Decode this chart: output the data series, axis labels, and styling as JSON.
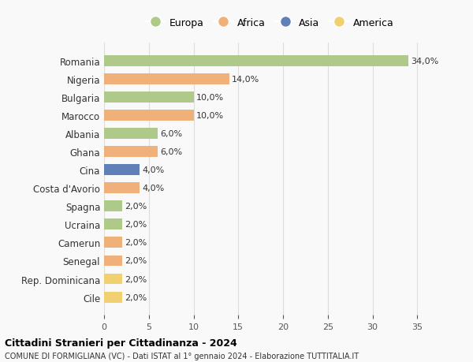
{
  "countries": [
    "Romania",
    "Nigeria",
    "Bulgaria",
    "Marocco",
    "Albania",
    "Ghana",
    "Cina",
    "Costa d'Avorio",
    "Spagna",
    "Ucraina",
    "Camerun",
    "Senegal",
    "Rep. Dominicana",
    "Cile"
  ],
  "values": [
    34.0,
    14.0,
    10.0,
    10.0,
    6.0,
    6.0,
    4.0,
    4.0,
    2.0,
    2.0,
    2.0,
    2.0,
    2.0,
    2.0
  ],
  "continents": [
    "Europa",
    "Africa",
    "Europa",
    "Africa",
    "Europa",
    "Africa",
    "Asia",
    "Africa",
    "Europa",
    "Europa",
    "Africa",
    "Africa",
    "America",
    "America"
  ],
  "colors": {
    "Europa": "#aec98a",
    "Africa": "#f0b07a",
    "Asia": "#6080b8",
    "America": "#f0d070"
  },
  "legend_order": [
    "Europa",
    "Africa",
    "Asia",
    "America"
  ],
  "title": "Cittadini Stranieri per Cittadinanza - 2024",
  "subtitle": "COMUNE DI FORMIGLIANA (VC) - Dati ISTAT al 1° gennaio 2024 - Elaborazione TUTTITALIA.IT",
  "xlim": [
    0,
    37
  ],
  "xticks": [
    0,
    5,
    10,
    15,
    20,
    25,
    30,
    35
  ],
  "background_color": "#f9f9f9",
  "grid_color": "#dddddd",
  "bar_height": 0.6
}
